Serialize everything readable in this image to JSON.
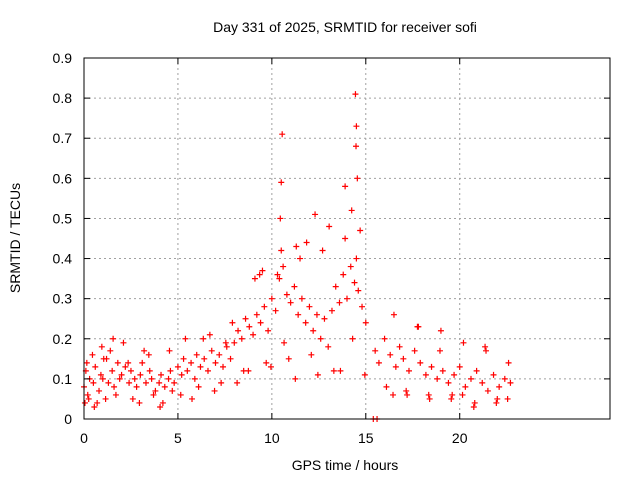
{
  "chart_data": {
    "type": "scatter",
    "title": "Day 331 of 2025, SRMTID for receiver sofi",
    "xlabel": "GPS time / hours",
    "ylabel": "SRMTID / TECUs",
    "xlim": [
      0,
      28
    ],
    "ylim": [
      0,
      0.9
    ],
    "x_ticks": [
      0,
      5,
      10,
      15,
      20
    ],
    "y_ticks": [
      0,
      0.1,
      0.2,
      0.3,
      0.4,
      0.5,
      0.6,
      0.7,
      0.8,
      0.9
    ],
    "x_tick_labels": [
      "0",
      "5",
      "10",
      "15",
      "20"
    ],
    "y_tick_labels": [
      "0",
      "0.1",
      "0.2",
      "0.3",
      "0.4",
      "0.5",
      "0.6",
      "0.7",
      "0.8",
      "0.9"
    ],
    "grid": true,
    "marker": "+",
    "series": [
      {
        "name": "SRMTID",
        "color": "#ff0000",
        "x": [
          0.0,
          0.1,
          0.2,
          0.3,
          0.5,
          0.6,
          0.8,
          0.9,
          1.0,
          1.2,
          1.3,
          1.5,
          1.6,
          1.8,
          1.9,
          2.0,
          2.2,
          2.4,
          2.5,
          2.7,
          2.8,
          3.0,
          3.1,
          3.3,
          3.5,
          3.6,
          3.8,
          4.0,
          4.1,
          4.3,
          4.5,
          4.6,
          4.8,
          5.0,
          5.2,
          5.3,
          5.5,
          5.7,
          5.9,
          6.0,
          6.2,
          6.4,
          6.6,
          6.8,
          7.0,
          7.2,
          7.4,
          7.6,
          7.8,
          8.0,
          8.2,
          8.4,
          8.6,
          8.8,
          9.0,
          9.2,
          9.4,
          9.6,
          9.8,
          10.0,
          10.2,
          10.4,
          10.5,
          10.6,
          10.8,
          11.0,
          11.2,
          11.4,
          11.6,
          11.8,
          12.0,
          12.2,
          12.4,
          12.6,
          12.8,
          13.0,
          13.2,
          13.4,
          13.6,
          13.8,
          14.0,
          14.2,
          14.4,
          14.5,
          14.6,
          14.8,
          15.0,
          15.5,
          15.7,
          16.0,
          16.3,
          16.6,
          16.8,
          17.0,
          17.3,
          17.6,
          17.9,
          18.2,
          18.5,
          18.8,
          19.1,
          19.4,
          19.7,
          20.0,
          20.3,
          20.6,
          20.9,
          21.2,
          21.5,
          21.8,
          22.1,
          22.4,
          22.7,
          0.05,
          0.25,
          0.45,
          0.7,
          0.95,
          1.15,
          1.4,
          1.7,
          2.1,
          2.6,
          3.2,
          3.7,
          4.2,
          4.7,
          5.4,
          6.1,
          6.7,
          7.3,
          7.9,
          8.5,
          9.1,
          9.7,
          10.3,
          10.9,
          11.5,
          12.1,
          12.7,
          13.3,
          13.9,
          14.3,
          14.7,
          16.1,
          16.5,
          17.2,
          17.8,
          18.4,
          19.0,
          19.6,
          20.2,
          20.8,
          21.4,
          22.0,
          22.6,
          0.15,
          0.55,
          1.05,
          1.55,
          2.35,
          2.95,
          3.45,
          4.05,
          4.55,
          5.15,
          5.75,
          6.35,
          6.95,
          7.55,
          8.15,
          8.75,
          9.35,
          9.95,
          10.45,
          10.65,
          11.25,
          11.85,
          12.45,
          13.05,
          13.65,
          14.25,
          14.55,
          14.95,
          16.45,
          17.15,
          17.75,
          18.35,
          18.95,
          19.55,
          20.15,
          20.75,
          21.35,
          21.95,
          22.55,
          10.5,
          10.55,
          14.45,
          14.5,
          14.48,
          12.3,
          13.9,
          9.5,
          11.3,
          15.4,
          15.6
        ],
        "y": [
          0.08,
          0.12,
          0.06,
          0.1,
          0.09,
          0.13,
          0.07,
          0.11,
          0.1,
          0.15,
          0.09,
          0.12,
          0.08,
          0.14,
          0.1,
          0.11,
          0.13,
          0.09,
          0.12,
          0.1,
          0.08,
          0.11,
          0.14,
          0.09,
          0.12,
          0.1,
          0.07,
          0.09,
          0.11,
          0.08,
          0.1,
          0.12,
          0.09,
          0.13,
          0.11,
          0.15,
          0.12,
          0.14,
          0.1,
          0.16,
          0.13,
          0.15,
          0.12,
          0.17,
          0.14,
          0.16,
          0.13,
          0.18,
          0.15,
          0.19,
          0.22,
          0.2,
          0.25,
          0.23,
          0.21,
          0.26,
          0.24,
          0.28,
          0.22,
          0.3,
          0.27,
          0.35,
          0.42,
          0.38,
          0.31,
          0.29,
          0.33,
          0.26,
          0.3,
          0.24,
          0.28,
          0.22,
          0.26,
          0.2,
          0.25,
          0.18,
          0.27,
          0.33,
          0.29,
          0.36,
          0.3,
          0.38,
          0.34,
          0.4,
          0.32,
          0.28,
          0.24,
          0.17,
          0.14,
          0.2,
          0.16,
          0.13,
          0.18,
          0.15,
          0.12,
          0.17,
          0.14,
          0.11,
          0.13,
          0.1,
          0.12,
          0.09,
          0.11,
          0.13,
          0.08,
          0.1,
          0.12,
          0.09,
          0.07,
          0.11,
          0.08,
          0.1,
          0.09,
          0.04,
          0.05,
          0.16,
          0.04,
          0.18,
          0.05,
          0.17,
          0.06,
          0.19,
          0.05,
          0.17,
          0.06,
          0.04,
          0.07,
          0.2,
          0.08,
          0.21,
          0.09,
          0.24,
          0.12,
          0.35,
          0.14,
          0.36,
          0.15,
          0.4,
          0.16,
          0.42,
          0.12,
          0.45,
          0.2,
          0.47,
          0.08,
          0.26,
          0.06,
          0.23,
          0.05,
          0.22,
          0.06,
          0.19,
          0.04,
          0.17,
          0.05,
          0.14,
          0.14,
          0.03,
          0.15,
          0.2,
          0.14,
          0.04,
          0.16,
          0.03,
          0.17,
          0.06,
          0.05,
          0.2,
          0.07,
          0.19,
          0.09,
          0.12,
          0.36,
          0.13,
          0.5,
          0.19,
          0.1,
          0.44,
          0.11,
          0.48,
          0.12,
          0.52,
          0.6,
          0.11,
          0.06,
          0.07,
          0.23,
          0.06,
          0.17,
          0.05,
          0.06,
          0.03,
          0.18,
          0.04,
          0.05,
          0.59,
          0.71,
          0.81,
          0.73,
          0.68,
          0.51,
          0.58,
          0.37,
          0.43,
          0.0,
          0.0
        ]
      }
    ]
  }
}
